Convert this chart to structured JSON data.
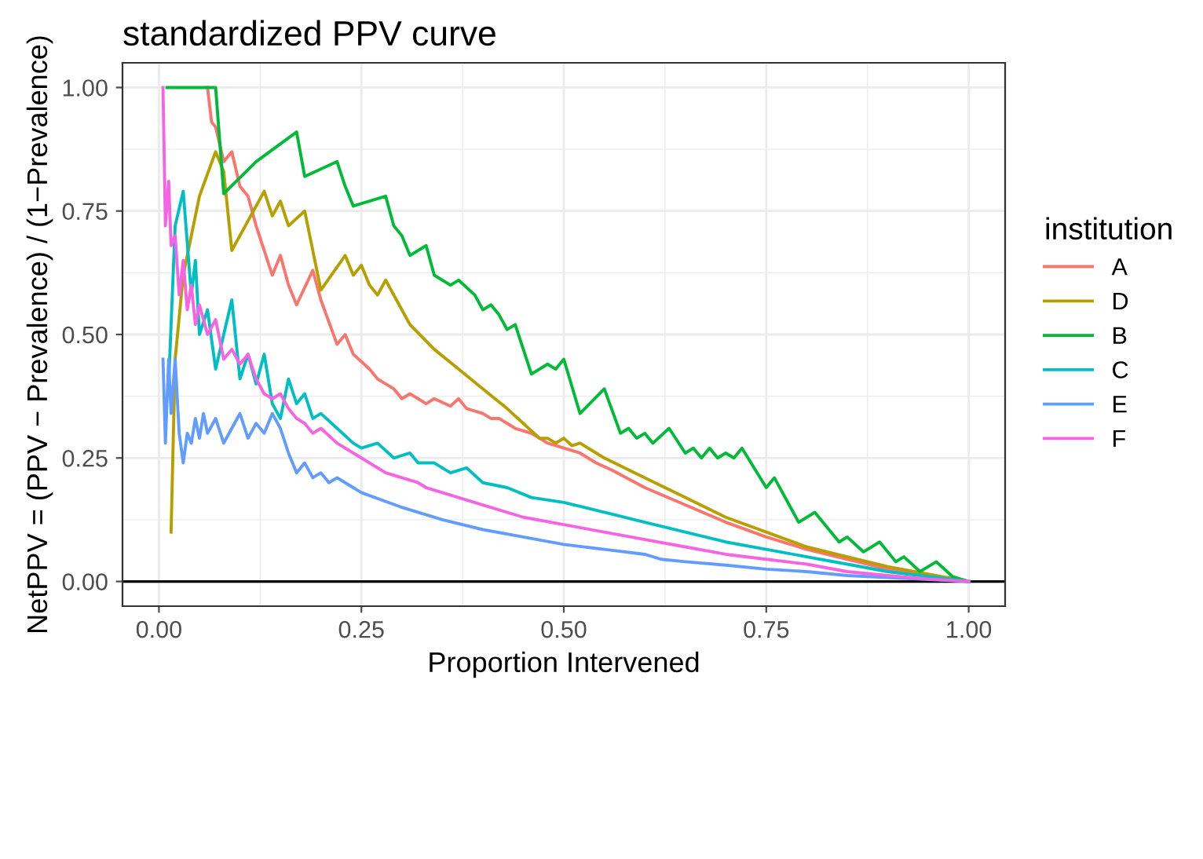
{
  "chart_data": {
    "type": "line",
    "title": "standardized PPV curve",
    "xlabel": "Proportion Intervened",
    "ylabel": "NetPPV = (PPV − Prevalence) / (1−Prevalence)",
    "legend_title": "institution",
    "legend": "right",
    "grid": true,
    "xlim": [
      -0.045,
      1.045
    ],
    "xticks": [
      {
        "value": 0,
        "label": "0.00"
      },
      {
        "value": 0.25,
        "label": "0.25"
      },
      {
        "value": 0.5,
        "label": "0.50"
      },
      {
        "value": 0.75,
        "label": "0.75"
      },
      {
        "value": 1,
        "label": "1.00"
      }
    ],
    "ylim": [
      -0.05,
      1.05
    ],
    "yticks": [
      {
        "value": 0,
        "label": "0.00"
      },
      {
        "value": 0.25,
        "label": "0.25"
      },
      {
        "value": 0.5,
        "label": "0.50"
      },
      {
        "value": 0.75,
        "label": "0.75"
      },
      {
        "value": 1,
        "label": "1.00"
      }
    ],
    "ref_lines": [
      {
        "axis": "y",
        "value": 0,
        "label": null,
        "color": "#000000"
      }
    ],
    "series": [
      {
        "name": "A",
        "color": "#f8766d",
        "x": [
          0.06,
          0.065,
          0.07,
          0.08,
          0.09,
          0.1,
          0.11,
          0.12,
          0.14,
          0.15,
          0.16,
          0.17,
          0.19,
          0.2,
          0.22,
          0.23,
          0.24,
          0.26,
          0.27,
          0.28,
          0.29,
          0.3,
          0.31,
          0.33,
          0.34,
          0.36,
          0.37,
          0.38,
          0.4,
          0.41,
          0.42,
          0.44,
          0.46,
          0.48,
          0.5,
          0.52,
          0.54,
          0.56,
          0.6,
          0.65,
          0.7,
          0.75,
          0.8,
          0.85,
          0.9,
          0.95,
          1.0
        ],
        "values": [
          1.0,
          0.93,
          0.92,
          0.85,
          0.87,
          0.8,
          0.78,
          0.72,
          0.62,
          0.66,
          0.6,
          0.56,
          0.63,
          0.57,
          0.48,
          0.5,
          0.46,
          0.43,
          0.41,
          0.4,
          0.39,
          0.37,
          0.38,
          0.36,
          0.37,
          0.355,
          0.37,
          0.35,
          0.34,
          0.33,
          0.33,
          0.31,
          0.3,
          0.28,
          0.27,
          0.26,
          0.24,
          0.225,
          0.19,
          0.155,
          0.12,
          0.09,
          0.065,
          0.045,
          0.025,
          0.01,
          0.0
        ]
      },
      {
        "name": "D",
        "color": "#b79f00",
        "x": [
          0.015,
          0.02,
          0.03,
          0.05,
          0.07,
          0.08,
          0.09,
          0.13,
          0.14,
          0.15,
          0.16,
          0.18,
          0.2,
          0.23,
          0.24,
          0.25,
          0.26,
          0.27,
          0.28,
          0.31,
          0.34,
          0.37,
          0.4,
          0.43,
          0.45,
          0.47,
          0.48,
          0.49,
          0.5,
          0.51,
          0.52,
          0.55,
          0.6,
          0.65,
          0.7,
          0.75,
          0.8,
          0.85,
          0.9,
          0.95,
          1.0
        ],
        "values": [
          0.1,
          0.45,
          0.62,
          0.78,
          0.87,
          0.83,
          0.67,
          0.79,
          0.74,
          0.77,
          0.72,
          0.75,
          0.59,
          0.66,
          0.62,
          0.64,
          0.6,
          0.58,
          0.61,
          0.52,
          0.47,
          0.43,
          0.39,
          0.35,
          0.32,
          0.29,
          0.29,
          0.28,
          0.29,
          0.275,
          0.28,
          0.25,
          0.21,
          0.17,
          0.13,
          0.1,
          0.07,
          0.05,
          0.03,
          0.015,
          0.0
        ]
      },
      {
        "name": "B",
        "color": "#00ba38",
        "x": [
          0.01,
          0.07,
          0.08,
          0.12,
          0.17,
          0.18,
          0.22,
          0.23,
          0.24,
          0.28,
          0.29,
          0.3,
          0.31,
          0.33,
          0.34,
          0.36,
          0.37,
          0.39,
          0.4,
          0.41,
          0.42,
          0.43,
          0.44,
          0.46,
          0.48,
          0.49,
          0.5,
          0.52,
          0.55,
          0.57,
          0.58,
          0.59,
          0.6,
          0.61,
          0.63,
          0.65,
          0.66,
          0.67,
          0.68,
          0.69,
          0.7,
          0.71,
          0.72,
          0.75,
          0.76,
          0.79,
          0.81,
          0.84,
          0.85,
          0.87,
          0.89,
          0.91,
          0.92,
          0.94,
          0.96,
          0.98,
          1.0
        ],
        "values": [
          1.0,
          1.0,
          0.785,
          0.85,
          0.91,
          0.82,
          0.85,
          0.8,
          0.76,
          0.78,
          0.72,
          0.7,
          0.66,
          0.68,
          0.62,
          0.6,
          0.61,
          0.58,
          0.55,
          0.56,
          0.54,
          0.51,
          0.52,
          0.42,
          0.44,
          0.43,
          0.45,
          0.34,
          0.39,
          0.3,
          0.31,
          0.29,
          0.3,
          0.28,
          0.31,
          0.26,
          0.27,
          0.25,
          0.27,
          0.25,
          0.26,
          0.25,
          0.27,
          0.19,
          0.21,
          0.12,
          0.14,
          0.08,
          0.09,
          0.06,
          0.08,
          0.04,
          0.05,
          0.02,
          0.04,
          0.01,
          0.0
        ]
      },
      {
        "name": "C",
        "color": "#00bfc4",
        "x": [
          0.012,
          0.02,
          0.03,
          0.04,
          0.045,
          0.05,
          0.06,
          0.07,
          0.09,
          0.1,
          0.11,
          0.12,
          0.13,
          0.14,
          0.15,
          0.16,
          0.17,
          0.18,
          0.19,
          0.2,
          0.22,
          0.24,
          0.25,
          0.27,
          0.29,
          0.31,
          0.32,
          0.34,
          0.36,
          0.38,
          0.4,
          0.43,
          0.46,
          0.5,
          0.55,
          0.6,
          0.65,
          0.7,
          0.75,
          0.8,
          0.85,
          0.9,
          0.95,
          1.0
        ],
        "values": [
          0.4,
          0.72,
          0.79,
          0.58,
          0.65,
          0.5,
          0.55,
          0.43,
          0.57,
          0.41,
          0.46,
          0.4,
          0.46,
          0.36,
          0.33,
          0.41,
          0.36,
          0.38,
          0.33,
          0.34,
          0.31,
          0.28,
          0.27,
          0.28,
          0.25,
          0.26,
          0.24,
          0.24,
          0.22,
          0.23,
          0.2,
          0.19,
          0.17,
          0.16,
          0.14,
          0.12,
          0.1,
          0.08,
          0.065,
          0.05,
          0.035,
          0.02,
          0.01,
          0.0
        ]
      },
      {
        "name": "E",
        "color": "#619cff",
        "x": [
          0.005,
          0.008,
          0.012,
          0.015,
          0.02,
          0.025,
          0.03,
          0.035,
          0.04,
          0.045,
          0.05,
          0.055,
          0.06,
          0.07,
          0.08,
          0.09,
          0.1,
          0.11,
          0.12,
          0.13,
          0.14,
          0.15,
          0.16,
          0.17,
          0.18,
          0.19,
          0.2,
          0.21,
          0.22,
          0.23,
          0.25,
          0.3,
          0.35,
          0.4,
          0.45,
          0.5,
          0.55,
          0.6,
          0.62,
          0.65,
          0.7,
          0.75,
          0.8,
          0.85,
          0.9,
          0.95,
          1.0
        ],
        "values": [
          0.45,
          0.28,
          0.45,
          0.34,
          0.45,
          0.3,
          0.24,
          0.3,
          0.28,
          0.33,
          0.29,
          0.34,
          0.3,
          0.33,
          0.28,
          0.31,
          0.34,
          0.29,
          0.32,
          0.3,
          0.34,
          0.31,
          0.26,
          0.22,
          0.24,
          0.21,
          0.22,
          0.2,
          0.21,
          0.2,
          0.18,
          0.15,
          0.125,
          0.105,
          0.09,
          0.075,
          0.065,
          0.055,
          0.045,
          0.04,
          0.033,
          0.025,
          0.02,
          0.012,
          0.008,
          0.004,
          0.0
        ]
      },
      {
        "name": "F",
        "color": "#f564e3",
        "x": [
          0.005,
          0.008,
          0.012,
          0.015,
          0.02,
          0.025,
          0.03,
          0.035,
          0.04,
          0.045,
          0.05,
          0.06,
          0.07,
          0.08,
          0.09,
          0.1,
          0.11,
          0.12,
          0.13,
          0.14,
          0.15,
          0.16,
          0.17,
          0.18,
          0.19,
          0.2,
          0.22,
          0.25,
          0.28,
          0.3,
          0.32,
          0.33,
          0.35,
          0.4,
          0.45,
          0.5,
          0.55,
          0.6,
          0.65,
          0.7,
          0.75,
          0.8,
          0.85,
          0.9,
          0.95,
          1.0
        ],
        "values": [
          1.0,
          0.72,
          0.81,
          0.68,
          0.7,
          0.58,
          0.65,
          0.55,
          0.6,
          0.52,
          0.56,
          0.5,
          0.53,
          0.45,
          0.47,
          0.44,
          0.46,
          0.41,
          0.38,
          0.37,
          0.38,
          0.35,
          0.33,
          0.32,
          0.3,
          0.31,
          0.28,
          0.25,
          0.22,
          0.21,
          0.2,
          0.19,
          0.18,
          0.155,
          0.13,
          0.115,
          0.1,
          0.085,
          0.07,
          0.055,
          0.045,
          0.035,
          0.02,
          0.012,
          0.005,
          0.0
        ]
      }
    ]
  }
}
